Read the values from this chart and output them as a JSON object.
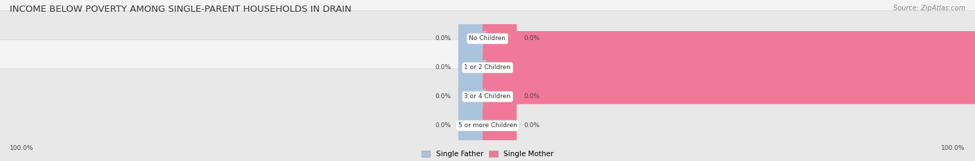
{
  "title": "INCOME BELOW POVERTY AMONG SINGLE-PARENT HOUSEHOLDS IN DRAIN",
  "source": "Source: ZipAtlas.com",
  "categories": [
    "No Children",
    "1 or 2 Children",
    "3 or 4 Children",
    "5 or more Children"
  ],
  "single_father": [
    0.0,
    0.0,
    0.0,
    0.0
  ],
  "single_mother": [
    0.0,
    100.0,
    0.0,
    0.0
  ],
  "father_color": "#aac4de",
  "mother_color": "#f07898",
  "row_bg_odd": "#f4f4f4",
  "row_bg_even": "#e8e8e8",
  "title_fontsize": 9.5,
  "source_fontsize": 7,
  "label_fontsize": 6.5,
  "category_fontsize": 6.5,
  "legend_fontsize": 7.5,
  "max_value": 100.0,
  "bottom_left_label": "100.0%",
  "bottom_right_label": "100.0%",
  "stub_size": 5.0
}
